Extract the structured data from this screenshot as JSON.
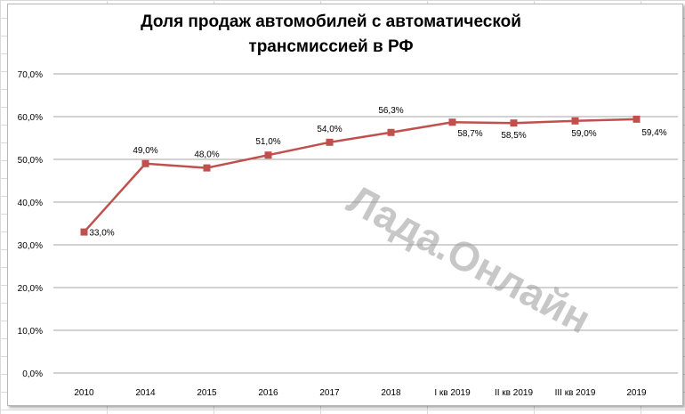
{
  "chart_data": {
    "type": "line",
    "title_lines": [
      "Доля продаж автомобилей с автоматической",
      "трансмиссией  в РФ"
    ],
    "categories": [
      "2010",
      "2014",
      "2015",
      "2016",
      "2017",
      "2018",
      "I кв 2019",
      "II кв 2019",
      "III кв 2019",
      "2019"
    ],
    "series": [
      {
        "values": [
          33.0,
          49.0,
          48.0,
          51.0,
          54.0,
          56.3,
          58.7,
          58.5,
          59.0,
          59.4
        ],
        "color": "#c0504d"
      }
    ],
    "data_labels": [
      "33,0%",
      "49,0%",
      "48,0%",
      "51,0%",
      "54,0%",
      "56,3%",
      "58,7%",
      "58,5%",
      "59,0%",
      "59,4%"
    ],
    "y_ticks": [
      "0,0%",
      "10,0%",
      "20,0%",
      "30,0%",
      "40,0%",
      "50,0%",
      "60,0%",
      "70,0%"
    ],
    "ylim": [
      0,
      70
    ],
    "grid": true,
    "legend": "none",
    "marker": "square",
    "gridline_color": "#a6a6a6",
    "watermark": "Лада.Онлайн"
  }
}
